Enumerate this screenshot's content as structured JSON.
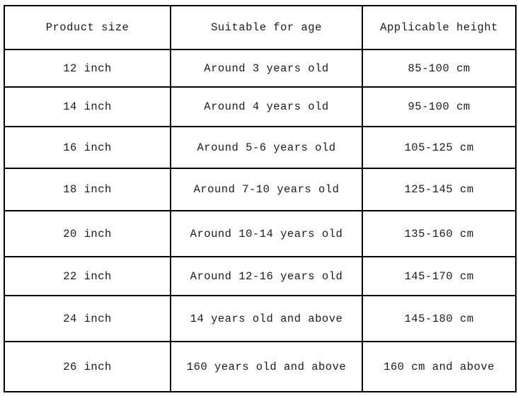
{
  "table": {
    "headers": [
      "Product size",
      "Suitable for age",
      "Applicable height"
    ],
    "rows": [
      [
        "12 inch",
        "Around 3 years old",
        "85-100 cm"
      ],
      [
        "14 inch",
        "Around 4 years old",
        "95-100 cm"
      ],
      [
        "16 inch",
        "Around 5-6 years old",
        "105-125 cm"
      ],
      [
        "18 inch",
        "Around 7-10 years old",
        "125-145 cm"
      ],
      [
        "20 inch",
        "Around 10-14 years old",
        "135-160 cm"
      ],
      [
        "22 inch",
        "Around 12-16 years old",
        "145-170 cm"
      ],
      [
        "24 inch",
        "14 years old and above",
        "145-180 cm"
      ],
      [
        "26 inch",
        "160 years old and above",
        "160 cm and above"
      ]
    ],
    "colors": {
      "border": "#000000",
      "text": "#1a1a1a",
      "background": "#ffffff"
    }
  }
}
